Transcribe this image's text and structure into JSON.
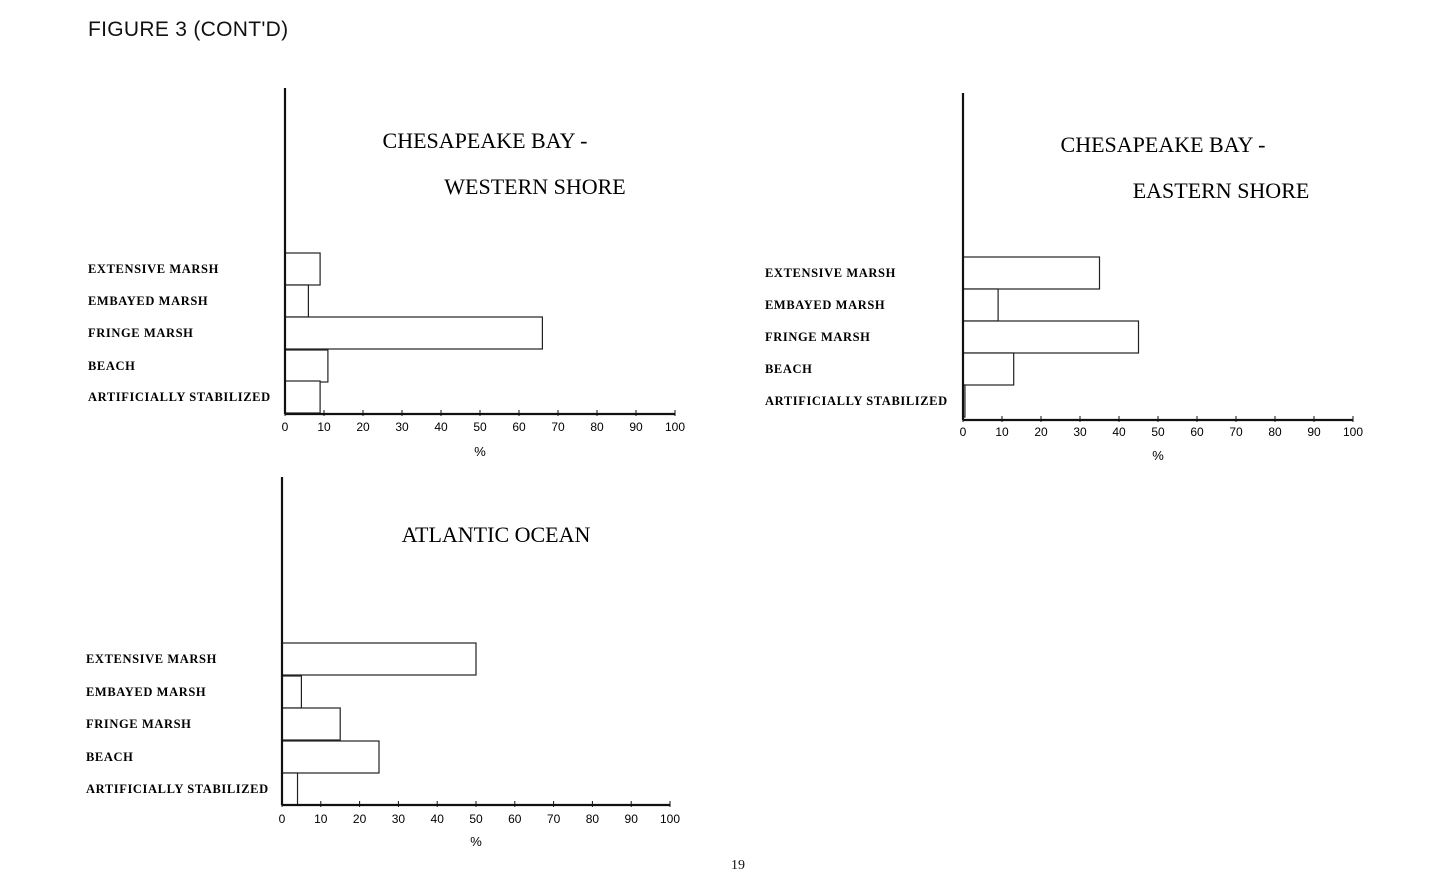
{
  "figure_title": "FIGURE 3 (CONT'D)",
  "page_number": "19",
  "chart_data": [
    {
      "type": "bar",
      "orientation": "horizontal",
      "title_lines": [
        "CHESAPEAKE BAY -",
        "WESTERN SHORE"
      ],
      "categories": [
        "EXTENSIVE MARSH",
        "EMBAYED MARSH",
        "FRINGE MARSH",
        "BEACH",
        "ARTIFICIALLY STABILIZED"
      ],
      "values": [
        9,
        6,
        66,
        11,
        9
      ],
      "xlim": [
        0,
        100
      ],
      "xticks": [
        "0",
        "10",
        "20",
        "30",
        "40",
        "50",
        "60",
        "70",
        "80",
        "90",
        "100"
      ],
      "xlabel": "%",
      "grid": false
    },
    {
      "type": "bar",
      "orientation": "horizontal",
      "title_lines": [
        "CHESAPEAKE BAY -",
        "EASTERN SHORE"
      ],
      "categories": [
        "EXTENSIVE MARSH",
        "EMBAYED MARSH",
        "FRINGE MARSH",
        "BEACH",
        "ARTIFICIALLY STABILIZED"
      ],
      "values": [
        35,
        9,
        45,
        13,
        0.5
      ],
      "xlim": [
        0,
        100
      ],
      "xticks": [
        "0",
        "10",
        "20",
        "30",
        "40",
        "50",
        "60",
        "70",
        "80",
        "90",
        "100"
      ],
      "xlabel": "%",
      "grid": false
    },
    {
      "type": "bar",
      "orientation": "horizontal",
      "title_lines": [
        "ATLANTIC OCEAN"
      ],
      "categories": [
        "EXTENSIVE MARSH",
        "EMBAYED MARSH",
        "FRINGE MARSH",
        "BEACH",
        "ARTIFICIALLY STABILIZED"
      ],
      "values": [
        50,
        5,
        15,
        25,
        4
      ],
      "xlim": [
        0,
        100
      ],
      "xticks": [
        "0",
        "10",
        "20",
        "30",
        "40",
        "50",
        "60",
        "70",
        "80",
        "90",
        "100"
      ],
      "xlabel": "%",
      "grid": false
    }
  ]
}
